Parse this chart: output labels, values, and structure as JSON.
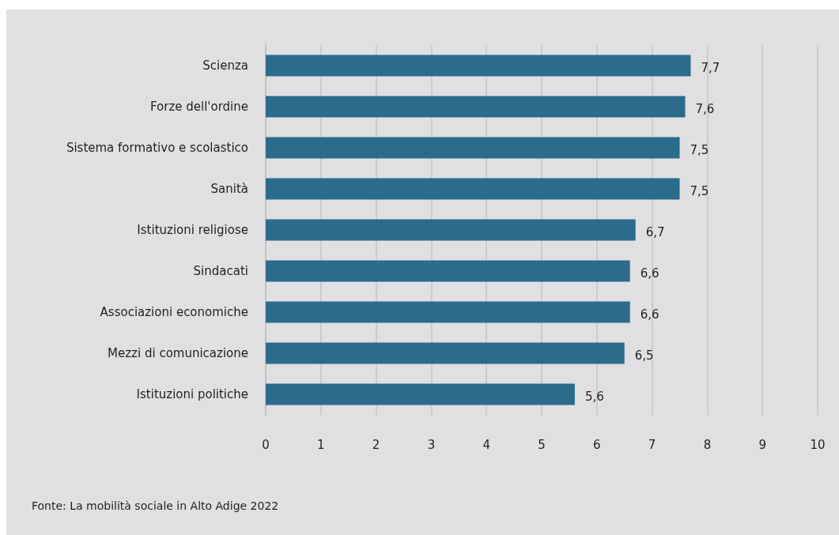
{
  "chart_data": {
    "type": "bar",
    "orientation": "horizontal",
    "categories": [
      "Scienza",
      "Forze dell'ordine",
      "Sistema formativo e scolastico",
      "Sanità",
      "Istituzioni religiose",
      "Sindacati",
      "Associazioni economiche",
      "Mezzi di comunicazione",
      "Istituzioni politiche"
    ],
    "values": [
      7.7,
      7.6,
      7.5,
      7.5,
      6.7,
      6.6,
      6.6,
      6.5,
      5.6
    ],
    "value_labels": [
      "7,7",
      "7,6",
      "7,5",
      "7,5",
      "6,7",
      "6,6",
      "6,6",
      "6,5",
      "5,6"
    ],
    "color": "#2b6b8b",
    "xlim": [
      0,
      10
    ],
    "xticks": [
      0,
      1,
      2,
      3,
      4,
      5,
      6,
      7,
      8,
      9,
      10
    ],
    "grid": "x",
    "annotations": [
      "Fonte: La mobilità sociale in Alto Adige 2022"
    ]
  }
}
